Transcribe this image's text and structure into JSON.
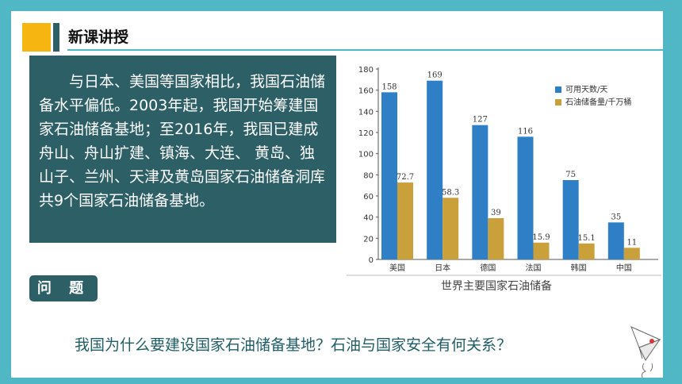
{
  "header": {
    "title": "新课讲授"
  },
  "text_box": {
    "paragraph": "与日本、美国等国家相比，我国石油储备水平偏低。2003年起，我国开始筹建国家石油储备基地；至2016年，我国已建成舟山、舟山扩建、镇海、大连、 黄岛、独山子、兰州、天津及黄岛国家石油储备洞库共9个国家石油储备基地。"
  },
  "question": {
    "label": "问 题",
    "text": "我国为什么要建设国家石油储备基地？石油与国家安全有何关系？"
  },
  "colors": {
    "series1": "#2f7fc6",
    "series2": "#c9a03a",
    "teal": "#2d5f67",
    "frame": "#4fb8c4",
    "accent": "#f7b512"
  },
  "chart_data": {
    "type": "bar",
    "title": "世界主要国家石油储备",
    "categories": [
      "美国",
      "日本",
      "德国",
      "法国",
      "韩国",
      "中国"
    ],
    "series": [
      {
        "name": "可用天数/天",
        "values": [
          158,
          169,
          127,
          116,
          75,
          35
        ],
        "labels": [
          "158",
          "169",
          "127",
          "116",
          "75",
          "35"
        ]
      },
      {
        "name": "石油储备量/千万桶",
        "values": [
          72.7,
          58.3,
          39,
          15.9,
          15.1,
          11
        ],
        "labels": [
          "72.7",
          "58.3",
          "39",
          "15.9",
          "15.1",
          "11"
        ]
      }
    ],
    "ylim": [
      0,
      180
    ],
    "yticks": [
      "0",
      "20",
      "40",
      "60",
      "80",
      "100",
      "120",
      "140",
      "160",
      "180"
    ],
    "legend_position": "top-right",
    "grid": false
  }
}
